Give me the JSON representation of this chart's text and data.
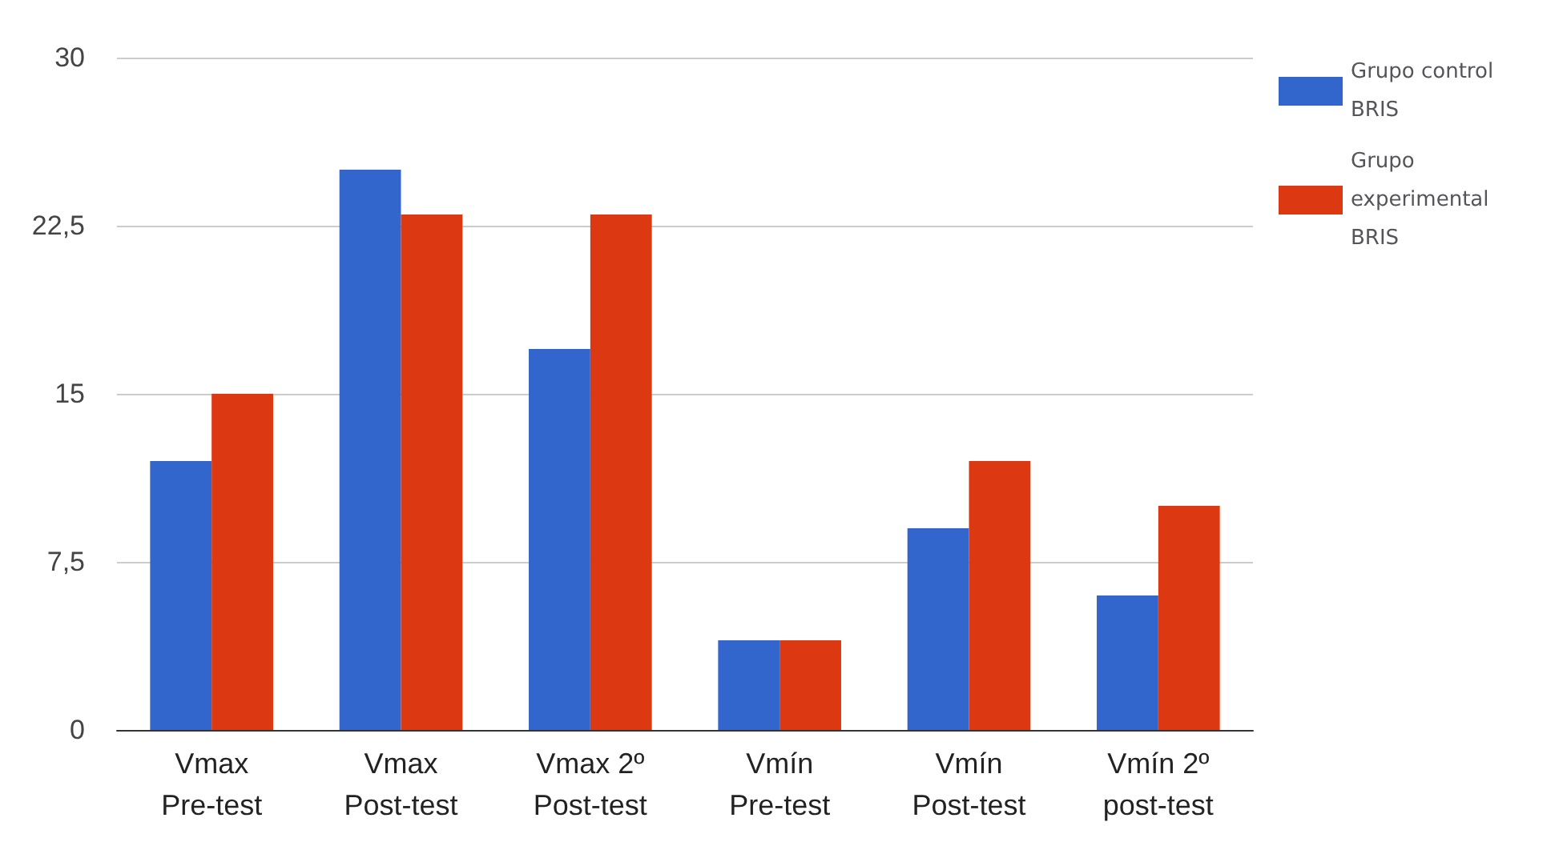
{
  "chart_data": {
    "type": "bar",
    "categories": [
      "Vmax\nPre-test",
      "Vmax\nPost-test",
      "Vmax 2º\nPost-test",
      "Vmín\nPre-test",
      "Vmín\nPost-test",
      "Vmín 2º\npost-test"
    ],
    "series": [
      {
        "name": "Grupo control BRIS",
        "color": "#3366cc",
        "values": [
          12,
          25,
          17,
          4,
          9,
          6
        ]
      },
      {
        "name": "Grupo experimental BRIS",
        "color": "#dc3912",
        "values": [
          15,
          23,
          23,
          4,
          12,
          10
        ]
      }
    ],
    "ylim": [
      0,
      30
    ],
    "yticks": [
      0,
      {
        "value": 7.5,
        "label": "7,5"
      },
      15,
      {
        "value": 22.5,
        "label": "22,5"
      },
      30
    ],
    "grid": "y",
    "legend": "top right"
  }
}
